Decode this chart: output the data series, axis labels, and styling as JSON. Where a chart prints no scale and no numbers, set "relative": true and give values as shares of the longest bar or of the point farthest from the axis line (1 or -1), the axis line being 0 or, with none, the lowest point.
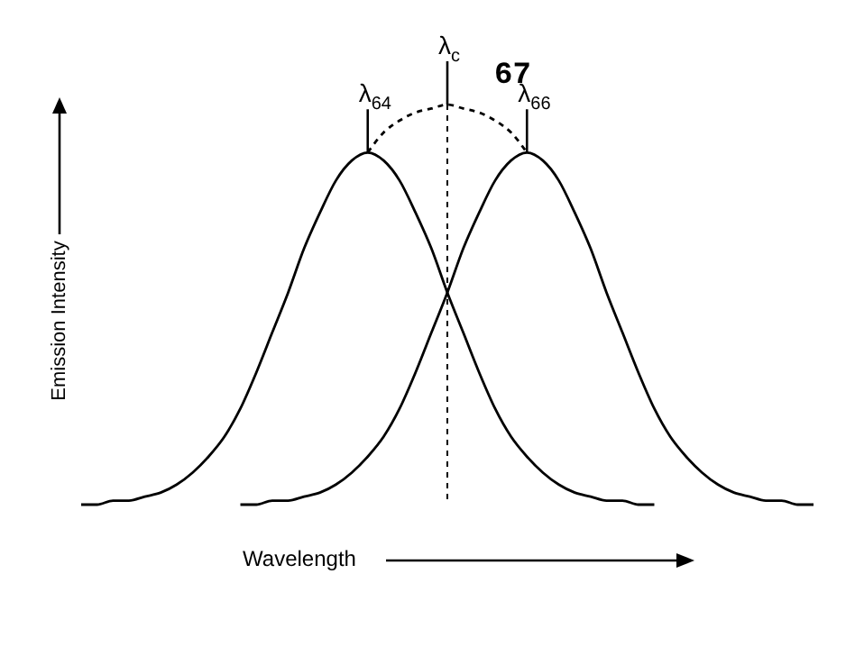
{
  "chart_data": {
    "type": "line",
    "relative": true,
    "xlabel": "Wavelength",
    "ylabel": "Emission Intensity",
    "marker": "none",
    "categories": [
      null,
      null,
      null,
      null,
      null,
      null,
      null,
      null,
      null,
      null,
      null,
      null,
      null,
      null,
      null,
      null,
      null,
      null,
      null,
      null,
      null,
      null,
      null,
      null,
      null,
      null,
      null,
      null,
      null,
      null,
      null,
      null,
      null,
      null,
      null,
      null,
      null,
      null,
      null,
      null,
      null,
      null,
      null,
      null,
      null,
      null,
      null
    ],
    "series": [
      {
        "color": "#000000",
        "line_style": "solid",
        "values": [
          0,
          0,
          0.01,
          0.01,
          0.02,
          0.03,
          0.05,
          0.08,
          0.12,
          0.17,
          0.24,
          0.33,
          0.43,
          0.53,
          0.64,
          0.73,
          0.81,
          0.86,
          0.88,
          0.86,
          0.81,
          0.73,
          0.64,
          0.53,
          0.43,
          0.33,
          0.24,
          0.17,
          0.12,
          0.08,
          0.05,
          0.03,
          0.02,
          0.01,
          0.01,
          0,
          0,
          null,
          null,
          null,
          null,
          null,
          null,
          null,
          null,
          null,
          null
        ]
      },
      {
        "color": "#000000",
        "line_style": "solid",
        "values": [
          null,
          null,
          null,
          null,
          null,
          null,
          null,
          null,
          null,
          null,
          0,
          0,
          0.01,
          0.01,
          0.02,
          0.03,
          0.05,
          0.08,
          0.12,
          0.17,
          0.24,
          0.33,
          0.43,
          0.53,
          0.64,
          0.73,
          0.81,
          0.86,
          0.88,
          0.86,
          0.81,
          0.73,
          0.64,
          0.53,
          0.43,
          0.33,
          0.24,
          0.17,
          0.12,
          0.08,
          0.05,
          0.03,
          0.02,
          0.01,
          0.01,
          0,
          0
        ]
      },
      {
        "color": "#000000",
        "line_style": "dashed",
        "values": [
          null,
          null,
          null,
          null,
          null,
          null,
          null,
          null,
          null,
          null,
          null,
          null,
          null,
          null,
          null,
          null,
          null,
          null,
          0.88,
          0.93,
          0.96,
          0.98,
          0.99,
          1,
          0.99,
          0.98,
          0.96,
          0.93,
          0.88,
          null,
          null,
          null,
          null,
          null,
          null,
          null,
          null,
          null,
          null,
          null,
          null,
          null,
          null,
          null,
          null,
          null,
          null
        ]
      }
    ],
    "annotations": [
      "λ$_{64}$",
      "λ$_{66}$",
      "λ$_{c}$",
      "67"
    ]
  }
}
